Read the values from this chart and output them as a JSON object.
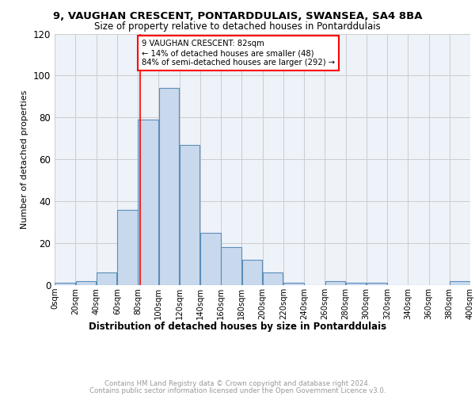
{
  "title1": "9, VAUGHAN CRESCENT, PONTARDDULAIS, SWANSEA, SA4 8BA",
  "title2": "Size of property relative to detached houses in Pontarddulais",
  "xlabel": "Distribution of detached houses by size in Pontarddulais",
  "ylabel": "Number of detached properties",
  "bar_color": "#c9d9ed",
  "bar_edge_color": "#5b8db8",
  "annotation_line1": "9 VAUGHAN CRESCENT: 82sqm",
  "annotation_line2": "← 14% of detached houses are smaller (48)",
  "annotation_line3": "84% of semi-detached houses are larger (292) →",
  "annotation_box_color": "white",
  "annotation_box_edge": "red",
  "vline_x": 82,
  "vline_color": "red",
  "bins": [
    0,
    20,
    40,
    60,
    80,
    100,
    120,
    140,
    160,
    180,
    200,
    220,
    240,
    260,
    280,
    300,
    320,
    340,
    360,
    380,
    400
  ],
  "counts": [
    1,
    2,
    6,
    36,
    79,
    94,
    67,
    25,
    18,
    12,
    6,
    1,
    0,
    2,
    1,
    1,
    0,
    0,
    0,
    2
  ],
  "ylim": [
    0,
    120
  ],
  "yticks": [
    0,
    20,
    40,
    60,
    80,
    100,
    120
  ],
  "grid_color": "#cccccc",
  "background_color": "#eef2f9",
  "footer_line1": "Contains HM Land Registry data © Crown copyright and database right 2024.",
  "footer_line2": "Contains public sector information licensed under the Open Government Licence v3.0.",
  "footer_color": "#999999"
}
